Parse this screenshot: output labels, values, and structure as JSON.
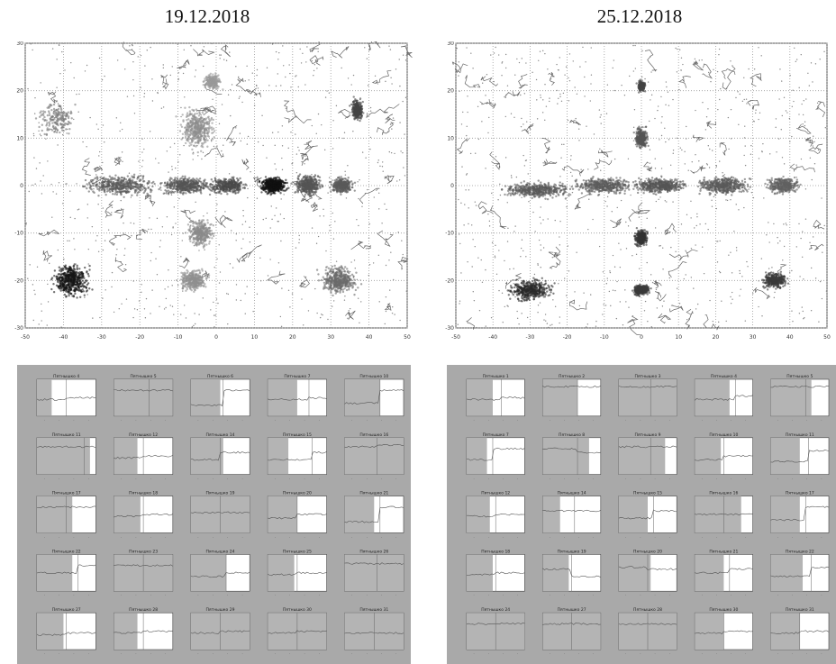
{
  "figure": {
    "left_date": "19.12.2018",
    "right_date": "25.12.2018"
  },
  "chart_data": [
    {
      "type": "scatter",
      "title": "19.12.2018",
      "xlim": [
        -50,
        50
      ],
      "ylim": [
        -30,
        30
      ],
      "x_ticks": [
        -50,
        -40,
        -30,
        -20,
        -10,
        0,
        10,
        20,
        30,
        40,
        50
      ],
      "y_ticks": [
        -30,
        -20,
        -10,
        0,
        10,
        20,
        30
      ],
      "grid": true,
      "clusters": [
        {
          "x": -25,
          "y": 0,
          "spread_x": 8,
          "spread_y": 1.8,
          "density": 0.5,
          "color": "#5a5a5a"
        },
        {
          "x": -8,
          "y": 0,
          "spread_x": 6,
          "spread_y": 1.6,
          "density": 0.5,
          "color": "#555555"
        },
        {
          "x": 3,
          "y": 0,
          "spread_x": 4,
          "spread_y": 1.5,
          "density": 0.4,
          "color": "#4a4a4a"
        },
        {
          "x": 15,
          "y": 0,
          "spread_x": 3,
          "spread_y": 1.5,
          "density": 0.6,
          "color": "#101010"
        },
        {
          "x": 24,
          "y": 0,
          "spread_x": 3,
          "spread_y": 2,
          "density": 0.5,
          "color": "#555555"
        },
        {
          "x": 33,
          "y": 0,
          "spread_x": 2.5,
          "spread_y": 1.5,
          "density": 0.4,
          "color": "#5a5a5a"
        },
        {
          "x": -5,
          "y": 12,
          "spread_x": 4,
          "spread_y": 4,
          "density": 0.5,
          "color": "#8e8e8e"
        },
        {
          "x": -1,
          "y": 22,
          "spread_x": 2,
          "spread_y": 1.5,
          "density": 0.25,
          "color": "#999999"
        },
        {
          "x": -4,
          "y": -10,
          "spread_x": 3,
          "spread_y": 2.5,
          "density": 0.4,
          "color": "#8a8a8a"
        },
        {
          "x": -6,
          "y": -20,
          "spread_x": 3,
          "spread_y": 2,
          "density": 0.4,
          "color": "#909090"
        },
        {
          "x": -38,
          "y": -20,
          "spread_x": 4,
          "spread_y": 3,
          "density": 0.6,
          "color": "#151515"
        },
        {
          "x": 32,
          "y": -20,
          "spread_x": 4,
          "spread_y": 2.5,
          "density": 0.5,
          "color": "#6a6a6a"
        },
        {
          "x": 37,
          "y": 16,
          "spread_x": 1.5,
          "spread_y": 2,
          "density": 0.35,
          "color": "#444444"
        },
        {
          "x": -42,
          "y": 14,
          "spread_x": 4,
          "spread_y": 3,
          "density": 0.2,
          "color": "#777777"
        }
      ]
    },
    {
      "type": "scatter",
      "title": "25.12.2018",
      "xlim": [
        -50,
        50
      ],
      "ylim": [
        -30,
        30
      ],
      "x_ticks": [
        -50,
        -40,
        -30,
        -20,
        -10,
        0,
        10,
        20,
        30,
        40,
        50
      ],
      "y_ticks": [
        -30,
        -20,
        -10,
        0,
        10,
        20,
        30
      ],
      "grid": true,
      "clusters": [
        {
          "x": -28,
          "y": -1,
          "spread_x": 8,
          "spread_y": 1.5,
          "density": 0.5,
          "color": "#585858"
        },
        {
          "x": -10,
          "y": 0,
          "spread_x": 7,
          "spread_y": 1.5,
          "density": 0.5,
          "color": "#5c5c5c"
        },
        {
          "x": 5,
          "y": 0,
          "spread_x": 6,
          "spread_y": 1.5,
          "density": 0.5,
          "color": "#555555"
        },
        {
          "x": 22,
          "y": 0,
          "spread_x": 6,
          "spread_y": 1.5,
          "density": 0.5,
          "color": "#5a5a5a"
        },
        {
          "x": 38,
          "y": 0,
          "spread_x": 4,
          "spread_y": 1.5,
          "density": 0.4,
          "color": "#606060"
        },
        {
          "x": 0,
          "y": 10,
          "spread_x": 1.5,
          "spread_y": 2,
          "density": 0.35,
          "color": "#555555"
        },
        {
          "x": 0,
          "y": 21,
          "spread_x": 1,
          "spread_y": 1,
          "density": 0.2,
          "color": "#444444"
        },
        {
          "x": 0,
          "y": -11,
          "spread_x": 1.5,
          "spread_y": 1.5,
          "density": 0.4,
          "color": "#333333"
        },
        {
          "x": -30,
          "y": -22,
          "spread_x": 5,
          "spread_y": 2,
          "density": 0.5,
          "color": "#2a2a2a"
        },
        {
          "x": 0,
          "y": -22,
          "spread_x": 2,
          "spread_y": 1,
          "density": 0.4,
          "color": "#3a3a3a"
        },
        {
          "x": 36,
          "y": -20,
          "spread_x": 3,
          "spread_y": 1.5,
          "density": 0.4,
          "color": "#3a3a3a"
        }
      ]
    },
    {
      "type": "line",
      "layout": "small-multiples",
      "rows": 5,
      "cols": 5,
      "panels": [
        {
          "title": "Пятнышко 4",
          "shade": [
            0.0,
            0.25
          ],
          "step": 0.5,
          "levels": [
            0.55,
            0.5
          ]
        },
        {
          "title": "Пятнышко 5",
          "shade": [
            0.0,
            1.0
          ],
          "step": 0.6,
          "levels": [
            0.3,
            0.3
          ]
        },
        {
          "title": "Пятнышко 6",
          "shade": [
            0.0,
            0.5
          ],
          "step": 0.55,
          "levels": [
            0.7,
            0.3
          ]
        },
        {
          "title": "Пятнышко 7",
          "shade": [
            0.0,
            0.5
          ],
          "step": 0.7,
          "levels": [
            0.55,
            0.5
          ]
        },
        {
          "title": "Пятнышко 10",
          "shade": [
            0.0,
            0.6
          ],
          "step": 0.6,
          "levels": [
            0.65,
            0.3
          ]
        },
        {
          "title": "Пятнышко 11",
          "shade": [
            0.0,
            0.9
          ],
          "step": 0.8,
          "levels": [
            0.25,
            0.25
          ]
        },
        {
          "title": "Пятнышко 12",
          "shade": [
            0.0,
            0.4
          ],
          "step": 0.5,
          "levels": [
            0.55,
            0.5
          ]
        },
        {
          "title": "Пятнышко 14",
          "shade": [
            0.0,
            0.55
          ],
          "step": 0.5,
          "levels": [
            0.6,
            0.4
          ]
        },
        {
          "title": "Пятнышко 15",
          "shade": [
            0.0,
            0.35
          ],
          "step": 0.75,
          "levels": [
            0.6,
            0.4
          ]
        },
        {
          "title": "Пятнышко 16",
          "shade": [
            0.0,
            1.0
          ],
          "step": 0.55,
          "levels": [
            0.25,
            0.2
          ]
        },
        {
          "title": "Пятнышко 17",
          "shade": [
            0.0,
            0.6
          ],
          "step": 0.5,
          "levels": [
            0.3,
            0.3
          ]
        },
        {
          "title": "Пятнышко 18",
          "shade": [
            0.0,
            0.45
          ],
          "step": 0.5,
          "levels": [
            0.55,
            0.5
          ]
        },
        {
          "title": "Пятнышко 19",
          "shade": [
            0.0,
            1.0
          ],
          "step": 0.5,
          "levels": [
            0.45,
            0.45
          ]
        },
        {
          "title": "Пятнышко 20",
          "shade": [
            0.0,
            0.5
          ],
          "step": 0.5,
          "levels": [
            0.6,
            0.5
          ]
        },
        {
          "title": "Пятнышко 21",
          "shade": [
            0.0,
            0.5
          ],
          "step": 0.6,
          "levels": [
            0.7,
            0.3
          ]
        },
        {
          "title": "Пятнышко 22",
          "shade": [
            0.0,
            0.6
          ],
          "step": 0.7,
          "levels": [
            0.5,
            0.3
          ]
        },
        {
          "title": "Пятнышко 23",
          "shade": [
            0.0,
            1.0
          ],
          "step": 0.5,
          "levels": [
            0.3,
            0.3
          ]
        },
        {
          "title": "Пятнышко 24",
          "shade": [
            0.0,
            0.6
          ],
          "step": 0.6,
          "levels": [
            0.6,
            0.5
          ]
        },
        {
          "title": "Пятнышко 25",
          "shade": [
            0.0,
            0.45
          ],
          "step": 0.5,
          "levels": [
            0.55,
            0.5
          ]
        },
        {
          "title": "Пятнышко 26",
          "shade": [
            0.0,
            1.0
          ],
          "step": 0.55,
          "levels": [
            0.25,
            0.25
          ]
        },
        {
          "title": "Пятнышко 27",
          "shade": [
            0.0,
            0.45
          ],
          "step": 0.5,
          "levels": [
            0.6,
            0.55
          ]
        },
        {
          "title": "Пятнышко 28",
          "shade": [
            0.0,
            0.4
          ],
          "step": 0.5,
          "levels": [
            0.55,
            0.5
          ]
        },
        {
          "title": "Пятнышко 29",
          "shade": [
            0.0,
            1.0
          ],
          "step": 0.5,
          "levels": [
            0.55,
            0.5
          ]
        },
        {
          "title": "Пятнышко 30",
          "shade": [
            0.0,
            1.0
          ],
          "step": 0.5,
          "levels": [
            0.55,
            0.5
          ]
        },
        {
          "title": "Пятнышко 31",
          "shade": [
            0.0,
            1.0
          ],
          "step": 0.5,
          "levels": [
            0.55,
            0.55
          ]
        }
      ]
    },
    {
      "type": "line",
      "layout": "small-multiples",
      "rows": 5,
      "cols": 5,
      "panels": [
        {
          "title": "Пятнышко 1",
          "shade": [
            0.0,
            0.45
          ],
          "step": 0.6,
          "levels": [
            0.55,
            0.5
          ]
        },
        {
          "title": "Пятнышко 2",
          "shade": [
            0.0,
            0.6
          ],
          "step": 0.6,
          "levels": [
            0.2,
            0.2
          ]
        },
        {
          "title": "Пятнышко 3",
          "shade": [
            0.0,
            1.0
          ],
          "step": 0.55,
          "levels": [
            0.2,
            0.2
          ]
        },
        {
          "title": "Пятнышко 4",
          "shade": [
            0.0,
            0.6
          ],
          "step": 0.7,
          "levels": [
            0.55,
            0.45
          ]
        },
        {
          "title": "Пятнышко 5",
          "shade": [
            0.0,
            0.7
          ],
          "step": 0.6,
          "levels": [
            0.2,
            0.2
          ]
        },
        {
          "title": "Пятнышко 7",
          "shade": [
            0.0,
            0.35
          ],
          "step": 0.45,
          "levels": [
            0.6,
            0.3
          ]
        },
        {
          "title": "Пятнышко 8",
          "shade": [
            0.0,
            0.8
          ],
          "step": 0.6,
          "levels": [
            0.3,
            0.4
          ]
        },
        {
          "title": "Пятнышко 9",
          "shade": [
            0.0,
            0.8
          ],
          "step": 0.55,
          "levels": [
            0.25,
            0.25
          ]
        },
        {
          "title": "Пятнышко 10",
          "shade": [
            0.0,
            0.45
          ],
          "step": 0.5,
          "levels": [
            0.6,
            0.5
          ]
        },
        {
          "title": "Пятнышко 11",
          "shade": [
            0.0,
            0.5
          ],
          "step": 0.65,
          "levels": [
            0.65,
            0.35
          ]
        },
        {
          "title": "Пятнышко 12",
          "shade": [
            0.0,
            0.4
          ],
          "step": 0.5,
          "levels": [
            0.55,
            0.5
          ]
        },
        {
          "title": "Пятнышко 14",
          "shade": [
            0.0,
            0.3
          ],
          "step": 0.55,
          "levels": [
            0.4,
            0.4
          ]
        },
        {
          "title": "Пятнышко 15",
          "shade": [
            0.0,
            0.5
          ],
          "step": 0.6,
          "levels": [
            0.6,
            0.4
          ]
        },
        {
          "title": "Пятнышко 16",
          "shade": [
            0.0,
            0.8
          ],
          "step": 0.5,
          "levels": [
            0.5,
            0.5
          ]
        },
        {
          "title": "Пятнышко 17",
          "shade": [
            0.0,
            0.5
          ],
          "step": 0.6,
          "levels": [
            0.65,
            0.3
          ]
        },
        {
          "title": "Пятнышко 18",
          "shade": [
            0.0,
            0.45
          ],
          "step": 0.5,
          "levels": [
            0.55,
            0.5
          ]
        },
        {
          "title": "Пятнышко 19",
          "shade": [
            0.0,
            0.45
          ],
          "step": 0.5,
          "levels": [
            0.4,
            0.6
          ]
        },
        {
          "title": "Пятнышко 20",
          "shade": [
            0.0,
            0.55
          ],
          "step": 0.5,
          "levels": [
            0.35,
            0.4
          ]
        },
        {
          "title": "Пятнышко 21",
          "shade": [
            0.0,
            0.5
          ],
          "step": 0.6,
          "levels": [
            0.5,
            0.4
          ]
        },
        {
          "title": "Пятнышко 22",
          "shade": [
            0.0,
            0.55
          ],
          "step": 0.7,
          "levels": [
            0.6,
            0.35
          ]
        },
        {
          "title": "Пятнышко 24",
          "shade": [
            0.0,
            1.0
          ],
          "step": 0.5,
          "levels": [
            0.3,
            0.3
          ]
        },
        {
          "title": "Пятнышко 27",
          "shade": [
            0.0,
            1.0
          ],
          "step": 0.5,
          "levels": [
            0.3,
            0.3
          ]
        },
        {
          "title": "Пятнышко 28",
          "shade": [
            0.0,
            1.0
          ],
          "step": 0.5,
          "levels": [
            0.3,
            0.3
          ]
        },
        {
          "title": "Пятнышко 30",
          "shade": [
            0.0,
            0.5
          ],
          "step": 0.5,
          "levels": [
            0.55,
            0.5
          ]
        },
        {
          "title": "Пятнышко 31",
          "shade": [
            0.0,
            0.5
          ],
          "step": 0.5,
          "levels": [
            0.55,
            0.5
          ]
        }
      ]
    }
  ]
}
